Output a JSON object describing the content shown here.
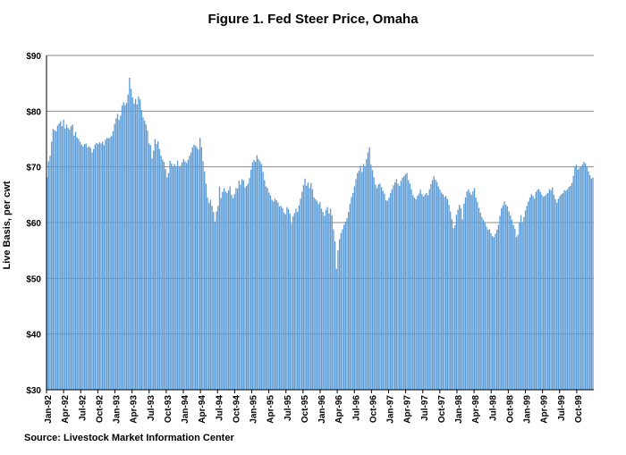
{
  "chart_data": {
    "type": "bar",
    "title": "Figure 1. Fed Steer Price, Omaha",
    "ylabel": "Live Basis, per cwt",
    "xlabel": "",
    "ylim": [
      30,
      90
    ],
    "y_ticks": [
      "$30",
      "$40",
      "$50",
      "$60",
      "$70",
      "$80",
      "$90"
    ],
    "x_ticks": [
      "Jan-92",
      "Apr-92",
      "Jul-92",
      "Oct-92",
      "Jan-93",
      "Apr-93",
      "Jul-93",
      "Oct-93",
      "Jan-94",
      "Apr-94",
      "Jul-94",
      "Oct-94",
      "Jan-95",
      "Apr-95",
      "Jul-95",
      "Oct-95",
      "Jan-96",
      "Apr-96",
      "Jul-96",
      "Oct-96",
      "Jan-97",
      "Apr-97",
      "Jul-97",
      "Oct-97",
      "Jan-98",
      "Apr-98",
      "Jul-98",
      "Oct-98",
      "Jan-99",
      "Apr-99",
      "Jul-99",
      "Oct-99"
    ],
    "grid": true,
    "legend": "none",
    "bar_color": "#5b9bd5",
    "series": [
      {
        "frequency": "weekly",
        "start": "Jan-92",
        "values": [
          68.1,
          71.0,
          72.0,
          74.5,
          76.8,
          76.6,
          76.4,
          77.4,
          77.8,
          78.2,
          77.3,
          78.5,
          76.9,
          77.6,
          77.0,
          76.7,
          77.3,
          77.6,
          75.6,
          76.3,
          75.3,
          75.0,
          74.5,
          74.0,
          73.7,
          74.1,
          74.2,
          73.5,
          73.7,
          73.4,
          72.6,
          73.2,
          74.0,
          74.3,
          74.1,
          74.4,
          74.2,
          74.5,
          73.9,
          74.9,
          75.2,
          75.1,
          75.3,
          75.5,
          76.4,
          77.7,
          78.7,
          79.5,
          78.4,
          79.2,
          81.0,
          81.6,
          81.1,
          81.5,
          83.0,
          86.0,
          84.0,
          82.5,
          81.4,
          82.2,
          81.2,
          82.6,
          82.1,
          80.2,
          78.9,
          78.3,
          77.6,
          76.5,
          74.2,
          73.9,
          71.5,
          72.9,
          75.0,
          74.1,
          74.6,
          73.2,
          72.0,
          71.3,
          70.9,
          69.6,
          68.1,
          68.9,
          71.1,
          70.6,
          70.0,
          70.5,
          70.1,
          71.1,
          69.9,
          70.2,
          70.8,
          71.4,
          71.0,
          70.7,
          71.3,
          72.0,
          72.6,
          73.5,
          74.0,
          73.8,
          73.4,
          73.1,
          75.2,
          73.5,
          71.0,
          69.2,
          67.0,
          64.5,
          63.5,
          64.1,
          63.0,
          61.9,
          60.2,
          62.0,
          63.0,
          66.5,
          64.4,
          65.5,
          66.2,
          65.6,
          65.3,
          65.8,
          66.5,
          65.0,
          64.4,
          65.1,
          66.2,
          66.1,
          67.5,
          66.8,
          67.8,
          67.6,
          66.3,
          66.6,
          67.0,
          68.0,
          69.5,
          70.8,
          71.2,
          70.9,
          72.1,
          71.4,
          71.0,
          70.5,
          69.1,
          67.6,
          66.5,
          66.2,
          65.4,
          64.9,
          64.1,
          63.8,
          64.3,
          64.0,
          63.6,
          62.9,
          63.0,
          62.6,
          61.8,
          61.5,
          62.8,
          62.4,
          61.6,
          59.8,
          61.1,
          61.7,
          62.5,
          61.9,
          63.1,
          64.3,
          65.5,
          66.7,
          67.9,
          66.6,
          67.2,
          66.2,
          67.1,
          66.0,
          64.5,
          64.2,
          63.9,
          63.3,
          63.7,
          62.5,
          61.9,
          61.2,
          62.3,
          62.8,
          61.6,
          62.5,
          61.3,
          58.8,
          56.6,
          51.7,
          55.0,
          57.0,
          58.1,
          58.8,
          59.6,
          60.2,
          60.8,
          61.9,
          63.4,
          64.6,
          65.3,
          66.5,
          67.8,
          68.9,
          69.3,
          70.2,
          69.1,
          70.5,
          70.1,
          71.4,
          72.6,
          73.5,
          70.4,
          69.4,
          68.1,
          66.8,
          66.2,
          66.9,
          67.0,
          66.4,
          65.7,
          65.2,
          64.0,
          63.9,
          64.5,
          65.3,
          66.0,
          66.7,
          67.2,
          67.8,
          67.0,
          66.6,
          67.5,
          68.0,
          68.3,
          68.7,
          68.9,
          67.6,
          67.0,
          66.0,
          64.9,
          64.5,
          64.2,
          64.8,
          65.2,
          65.9,
          65.1,
          64.7,
          65.0,
          65.3,
          64.9,
          66.0,
          66.9,
          67.6,
          68.3,
          67.7,
          67.3,
          66.5,
          65.9,
          65.4,
          65.1,
          64.6,
          64.8,
          64.2,
          63.2,
          62.0,
          60.6,
          59.0,
          59.5,
          61.4,
          62.3,
          63.2,
          62.6,
          60.6,
          63.4,
          64.5,
          65.6,
          66.0,
          65.4,
          65.0,
          65.6,
          66.2,
          64.5,
          63.7,
          62.6,
          61.8,
          61.0,
          60.5,
          59.9,
          59.3,
          58.7,
          58.8,
          58.1,
          57.6,
          57.4,
          58.0,
          58.7,
          59.6,
          61.2,
          62.6,
          63.1,
          63.8,
          63.2,
          62.9,
          62.0,
          61.3,
          60.5,
          59.6,
          58.9,
          57.4,
          57.8,
          60.0,
          61.3,
          60.1,
          61.0,
          62.2,
          63.0,
          63.8,
          64.5,
          65.1,
          64.8,
          64.3,
          65.5,
          65.9,
          66.0,
          65.5,
          65.0,
          64.6,
          64.8,
          65.1,
          65.3,
          66.0,
          65.8,
          66.3,
          65.0,
          64.2,
          63.6,
          64.3,
          64.8,
          65.1,
          65.3,
          65.8,
          65.7,
          66.0,
          66.4,
          66.6,
          67.1,
          68.4,
          70.0,
          70.4,
          69.5,
          69.8,
          70.1,
          70.4,
          70.9,
          70.6,
          70.0,
          69.2,
          68.5,
          67.9,
          68.1
        ]
      }
    ]
  },
  "source_text": "Source:  Livestock Market Information Center"
}
